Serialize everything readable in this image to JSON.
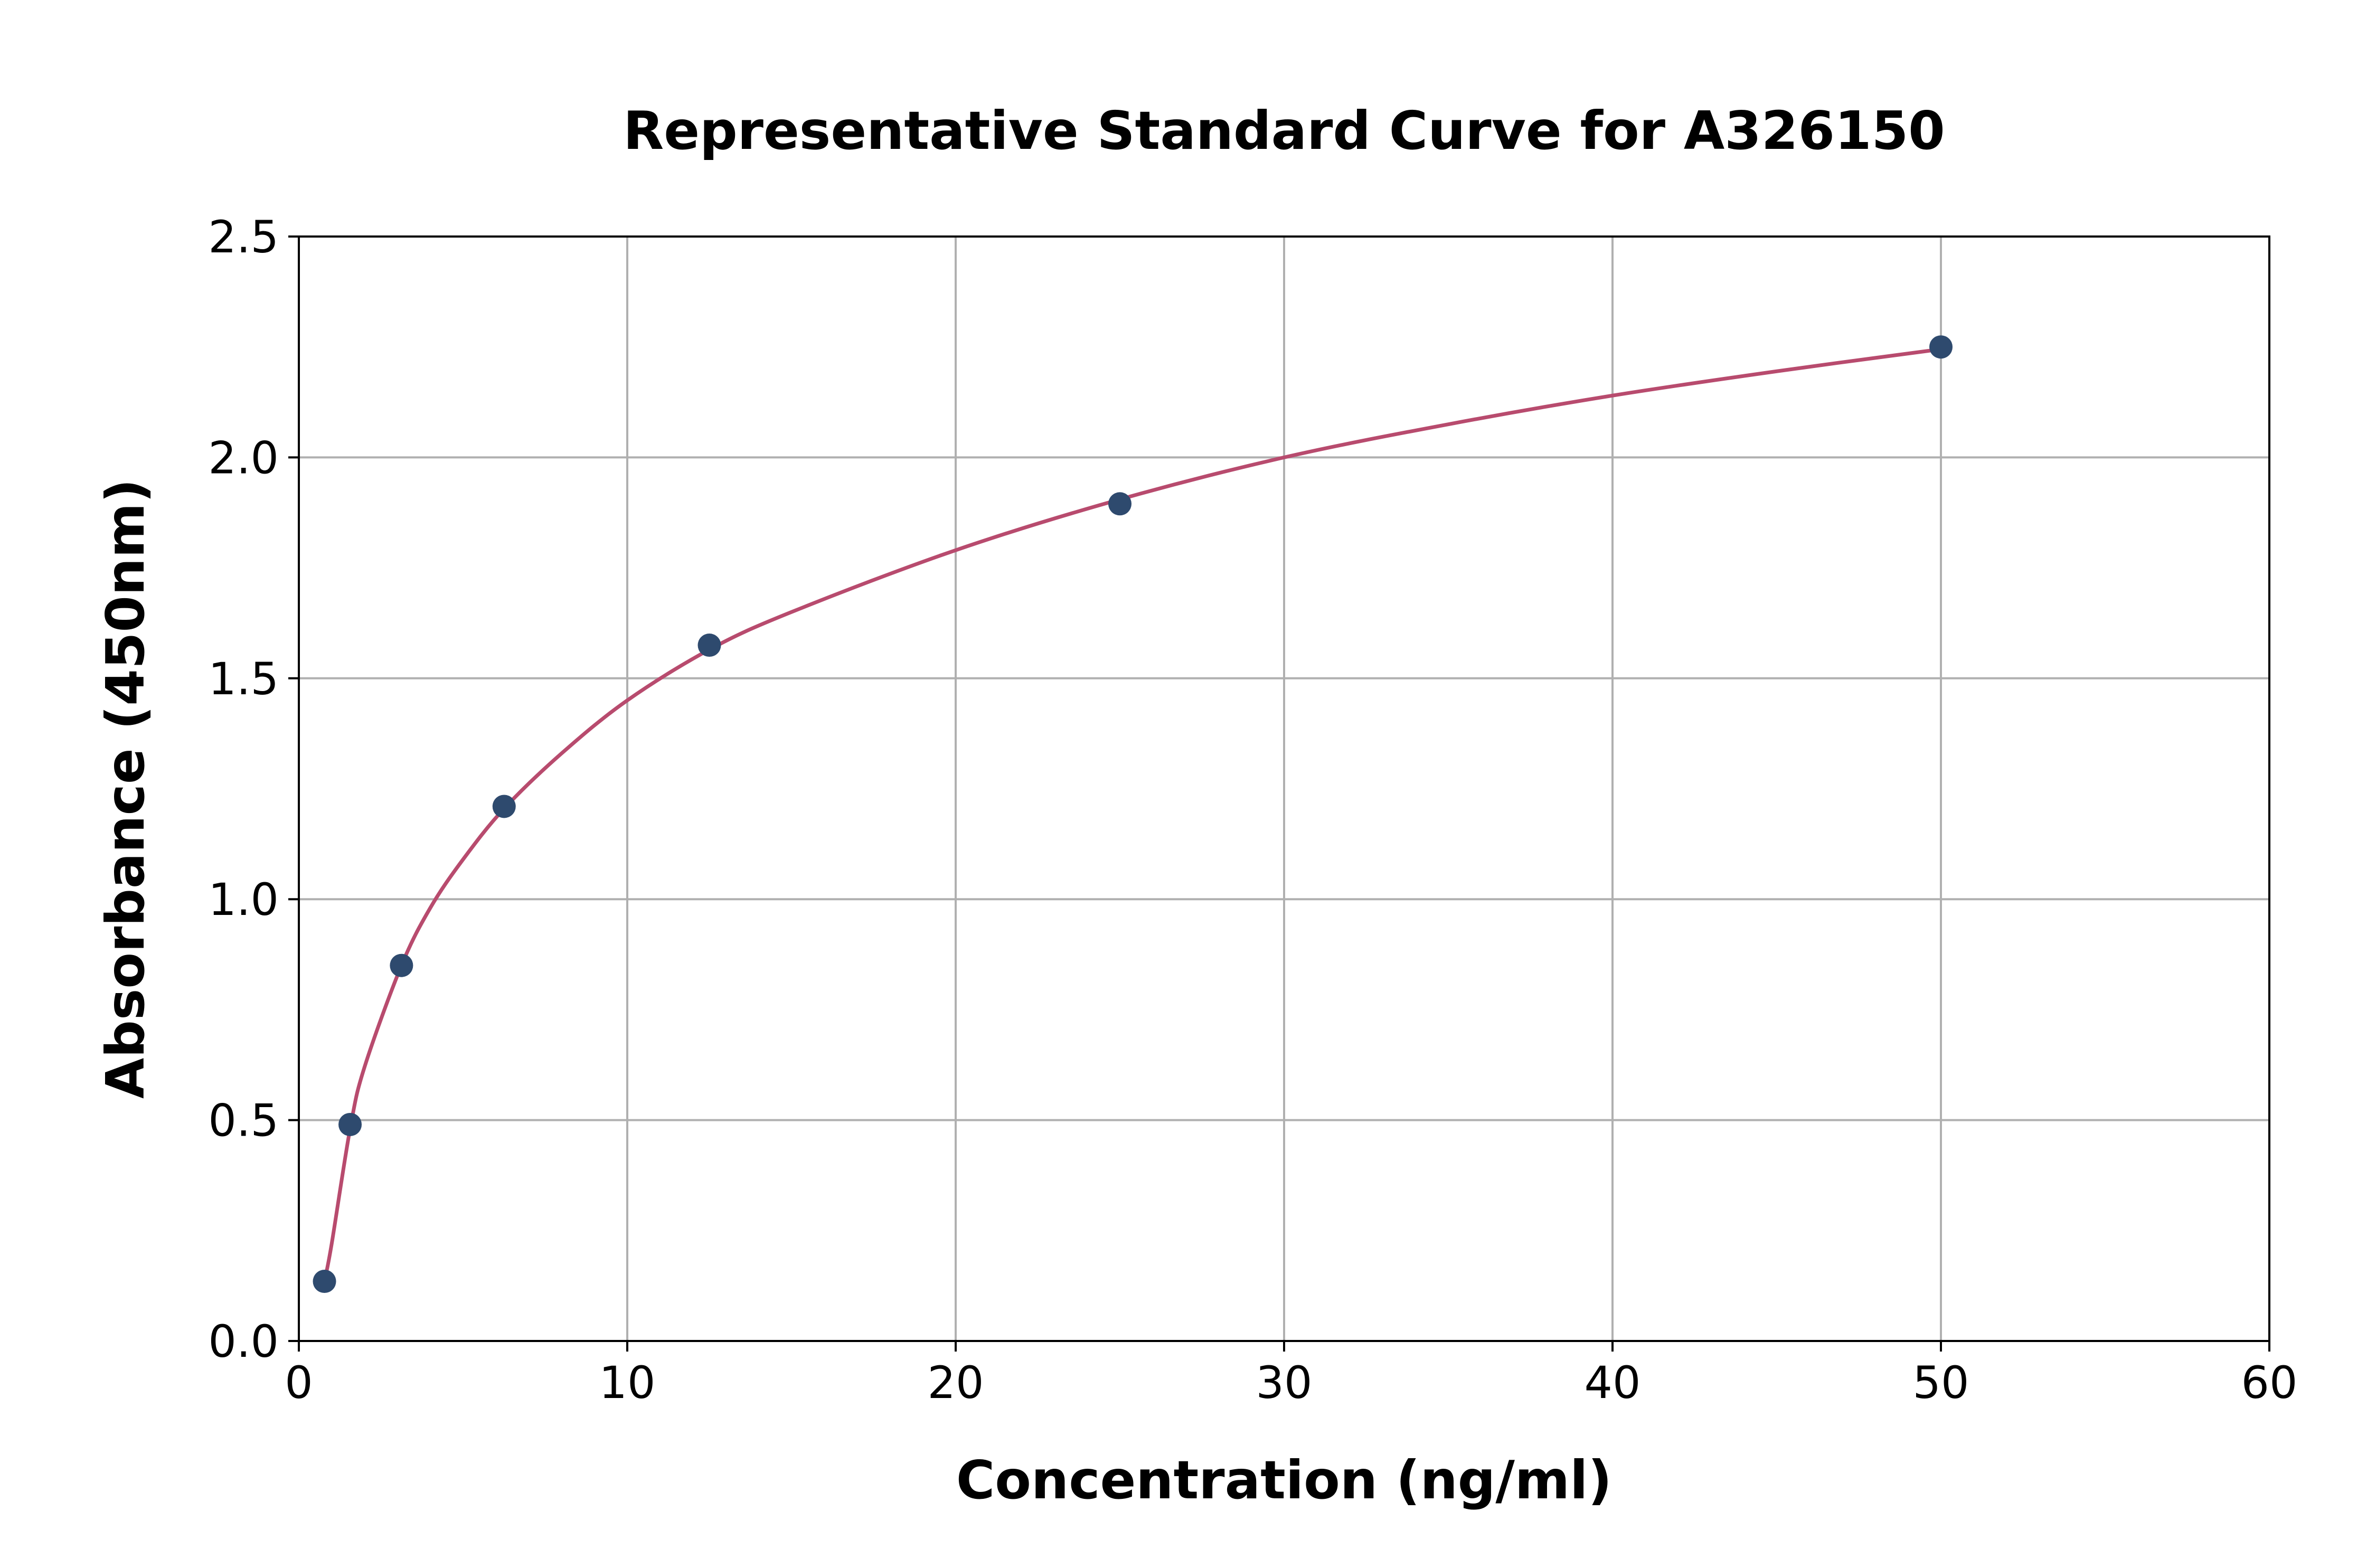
{
  "chart_data": {
    "type": "scatter",
    "title": "Representative Standard Curve for A326150",
    "xlabel": "Concentration (ng/ml)",
    "ylabel": "Absorbance (450nm)",
    "xlim": [
      0,
      60
    ],
    "ylim": [
      0,
      2.5
    ],
    "xticks": [
      0,
      10,
      20,
      30,
      40,
      50,
      60
    ],
    "yticks": [
      0.0,
      0.5,
      1.0,
      1.5,
      2.0,
      2.5
    ],
    "xtick_labels": [
      "0",
      "10",
      "20",
      "30",
      "40",
      "50",
      "60"
    ],
    "ytick_labels": [
      "0.0",
      "0.5",
      "1.0",
      "1.5",
      "2.0",
      "2.5"
    ],
    "grid": true,
    "legend": "none",
    "series": [
      {
        "type": "scatter",
        "x": [
          0.78,
          1.56,
          3.125,
          6.25,
          12.5,
          25,
          50
        ],
        "y": [
          0.135,
          0.49,
          0.85,
          1.21,
          1.575,
          1.895,
          2.25
        ],
        "color": "#2e4a6e"
      },
      {
        "type": "line",
        "fit": true,
        "x": [
          0.78,
          1.0,
          1.56,
          2.0,
          3.125,
          4.0,
          5.0,
          6.25,
          8.0,
          10.0,
          12.5,
          15.0,
          20.0,
          25.0,
          30.0,
          35.0,
          40.0,
          45.0,
          50.0
        ],
        "y": [
          0.135,
          0.22,
          0.48,
          0.62,
          0.85,
          0.98,
          1.09,
          1.205,
          1.33,
          1.45,
          1.565,
          1.65,
          1.79,
          1.905,
          2.0,
          2.075,
          2.14,
          2.195,
          2.245
        ],
        "color": "#b84b6e"
      }
    ]
  }
}
